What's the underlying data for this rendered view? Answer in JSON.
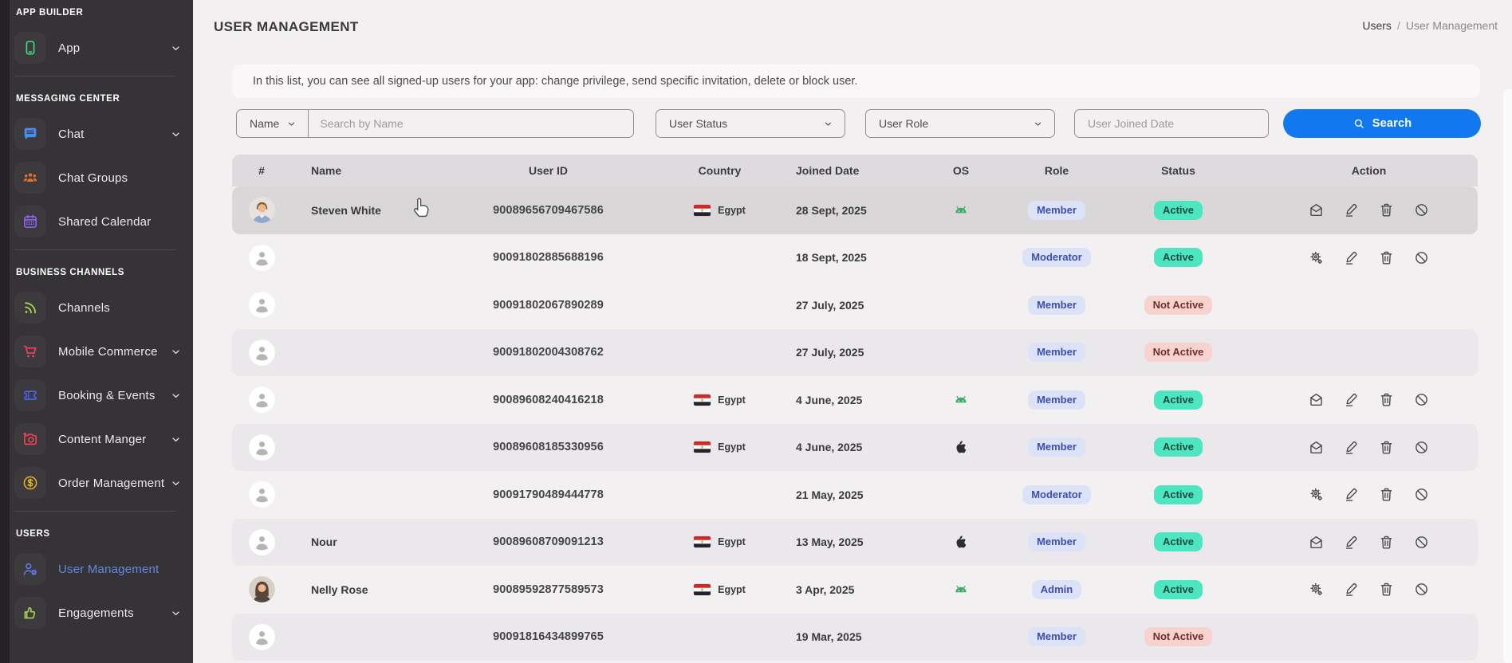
{
  "sidebar": {
    "sections": [
      {
        "heading": "APP BUILDER",
        "items": [
          {
            "label": "App",
            "icon": "phone-icon",
            "icon_color": "#3ddc84",
            "chevron": true
          }
        ]
      },
      {
        "heading": "MESSAGING CENTER",
        "items": [
          {
            "label": "Chat",
            "icon": "chat-icon",
            "icon_color": "#4a8df2",
            "chevron": true
          },
          {
            "label": "Chat Groups",
            "icon": "chat-groups-icon",
            "icon_color": "#e2712d",
            "chevron": false
          },
          {
            "label": "Shared Calendar",
            "icon": "calendar-icon",
            "icon_color": "#9163f7",
            "chevron": false
          }
        ]
      },
      {
        "heading": "BUSINESS CHANNELS",
        "items": [
          {
            "label": "Channels",
            "icon": "channels-icon",
            "icon_color": "#a8cf52",
            "chevron": false
          },
          {
            "label": "Mobile Commerce",
            "icon": "cart-icon",
            "icon_color": "#ee4460",
            "chevron": true
          },
          {
            "label": "Booking & Events",
            "icon": "ticket-icon",
            "icon_color": "#4a63ee",
            "chevron": true
          },
          {
            "label": "Content Manger",
            "icon": "camera-icon",
            "icon_color": "#ee4455",
            "chevron": true
          },
          {
            "label": "Order Management",
            "icon": "dollar-icon",
            "icon_color": "#e2b424",
            "chevron": true
          }
        ]
      },
      {
        "heading": "USERS",
        "items": [
          {
            "label": "User Management",
            "icon": "user-gear-icon",
            "icon_color": "#5b7de8",
            "chevron": false,
            "active": true
          },
          {
            "label": "Engagements",
            "icon": "thumbs-up-icon",
            "icon_color": "#a8d24f",
            "chevron": true
          }
        ]
      }
    ]
  },
  "header": {
    "title": "USER MANAGEMENT",
    "breadcrumb": {
      "parent": "Users",
      "separator": "/",
      "current": "User Management"
    }
  },
  "description": "In this list, you can see all signed-up users for your app: change privilege, send specific invitation, delete or block user.",
  "filters": {
    "name_select": "Name",
    "search_placeholder": "Search by Name",
    "status_select": "User Status",
    "role_select": "User Role",
    "joined_placeholder": "User Joined Date",
    "search_button": "Search"
  },
  "table": {
    "columns": [
      "#",
      "Name",
      "User ID",
      "Country",
      "Joined Date",
      "OS",
      "Role",
      "Status",
      "Action"
    ],
    "rows": [
      {
        "name": "Steven White",
        "user_id": "90089656709467586",
        "country": "Egypt",
        "joined": "28 Sept, 2025",
        "os": "android",
        "role": "Member",
        "status": "Active",
        "actions": [
          "mail",
          "edit",
          "trash",
          "block"
        ],
        "avatar": "photo-male",
        "highlighted": true
      },
      {
        "name": "",
        "user_id": "90091802885688196",
        "country": "",
        "joined": "18 Sept, 2025",
        "os": "",
        "role": "Moderator",
        "status": "Active",
        "actions": [
          "gear",
          "edit",
          "trash",
          "block"
        ],
        "avatar": "placeholder"
      },
      {
        "name": "",
        "user_id": "90091802067890289",
        "country": "",
        "joined": "27 July, 2025",
        "os": "",
        "role": "Member",
        "status": "Not Active",
        "actions": [],
        "avatar": "placeholder"
      },
      {
        "name": "",
        "user_id": "90091802004308762",
        "country": "",
        "joined": "27 July, 2025",
        "os": "",
        "role": "Member",
        "status": "Not Active",
        "actions": [],
        "avatar": "placeholder"
      },
      {
        "name": "",
        "user_id": "90089608240416218",
        "country": "Egypt",
        "joined": "4 June, 2025",
        "os": "android",
        "role": "Member",
        "status": "Active",
        "actions": [
          "mail",
          "edit",
          "trash",
          "block"
        ],
        "avatar": "placeholder"
      },
      {
        "name": "",
        "user_id": "90089608185330956",
        "country": "Egypt",
        "joined": "4 June, 2025",
        "os": "apple",
        "role": "Member",
        "status": "Active",
        "actions": [
          "mail",
          "edit",
          "trash",
          "block"
        ],
        "avatar": "placeholder"
      },
      {
        "name": "",
        "user_id": "90091790489444778",
        "country": "",
        "joined": "21 May, 2025",
        "os": "",
        "role": "Moderator",
        "status": "Active",
        "actions": [
          "gear",
          "edit",
          "trash",
          "block"
        ],
        "avatar": "placeholder"
      },
      {
        "name": "Nour",
        "user_id": "90089608709091213",
        "country": "Egypt",
        "joined": "13 May, 2025",
        "os": "apple",
        "role": "Member",
        "status": "Active",
        "actions": [
          "mail",
          "edit",
          "trash",
          "block"
        ],
        "avatar": "placeholder"
      },
      {
        "name": "Nelly Rose",
        "user_id": "90089592877589573",
        "country": "Egypt",
        "joined": "3 Apr, 2025",
        "os": "android",
        "role": "Admin",
        "status": "Active",
        "actions": [
          "gear",
          "edit",
          "trash",
          "block"
        ],
        "avatar": "photo-female"
      },
      {
        "name": "",
        "user_id": "90091816434899765",
        "country": "",
        "joined": "19 Mar, 2025",
        "os": "",
        "role": "Member",
        "status": "Not Active",
        "actions": [],
        "avatar": "placeholder"
      }
    ]
  },
  "colors": {
    "accent_blue": "#1278f0",
    "active_badge_bg": "#4ee6c0",
    "inactive_badge_bg": "#f7d2cf",
    "role_badge_bg": "#dce2f8",
    "sidebar_bg": "#353336",
    "active_item_text": "#6487e6"
  }
}
